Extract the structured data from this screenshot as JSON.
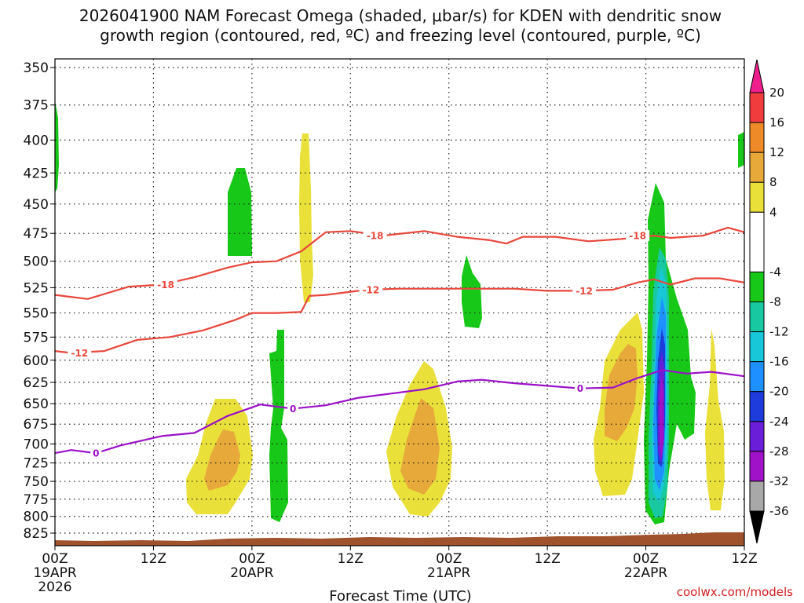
{
  "chart_data": {
    "type": "contour",
    "title": [
      "2026041900 NAM Forecast Omega (shaded, μbar/s) for KDEN with dendritic snow",
      "growth region (contoured, red, ºC) and freezing level (contoured, purple, ºC)"
    ],
    "xlabel": "Forecast Time (UTC)",
    "credit": "coolwx.com/models",
    "x_ticks": [
      {
        "hour": 0,
        "label": "00Z",
        "date": "19APR",
        "year": "2026"
      },
      {
        "hour": 12,
        "label": "12Z"
      },
      {
        "hour": 24,
        "label": "00Z",
        "date": "20APR"
      },
      {
        "hour": 36,
        "label": "12Z"
      },
      {
        "hour": 48,
        "label": "00Z",
        "date": "21APR"
      },
      {
        "hour": 60,
        "label": "12Z"
      },
      {
        "hour": 72,
        "label": "00Z",
        "date": "22APR"
      },
      {
        "hour": 84,
        "label": "12Z"
      }
    ],
    "xlim": [
      0,
      84
    ],
    "ylim": [
      350,
      835
    ],
    "y_ticks": [
      350,
      375,
      400,
      425,
      450,
      475,
      500,
      525,
      550,
      575,
      600,
      625,
      650,
      675,
      700,
      725,
      750,
      775,
      800,
      825
    ],
    "colorbar": {
      "ticks": [
        20,
        16,
        12,
        8,
        4,
        -4,
        -8,
        -12,
        -16,
        -20,
        -24,
        -28,
        -32,
        -36
      ],
      "bands": [
        {
          "range": [
            20,
            24
          ],
          "color": "#ee1f8c"
        },
        {
          "range": [
            16,
            20
          ],
          "color": "#f03c3c"
        },
        {
          "range": [
            12,
            16
          ],
          "color": "#ee8a28"
        },
        {
          "range": [
            8,
            12
          ],
          "color": "#e7a93a"
        },
        {
          "range": [
            4,
            8
          ],
          "color": "#e9e03a"
        },
        {
          "range": [
            -4,
            4
          ],
          "color": "#ffffff"
        },
        {
          "range": [
            -8,
            -4
          ],
          "color": "#18c818"
        },
        {
          "range": [
            -12,
            -8
          ],
          "color": "#18c8a0"
        },
        {
          "range": [
            -16,
            -12
          ],
          "color": "#18c8d8"
        },
        {
          "range": [
            -20,
            -16
          ],
          "color": "#1e90ff"
        },
        {
          "range": [
            -24,
            -20
          ],
          "color": "#1e3cdc"
        },
        {
          "range": [
            -28,
            -24
          ],
          "color": "#6a1ed8"
        },
        {
          "range": [
            -32,
            -28
          ],
          "color": "#a012c8"
        },
        {
          "range": [
            -36,
            -32
          ],
          "color": "#a8a8a8"
        },
        {
          "range": [
            -40,
            -36
          ],
          "color": "#000000"
        }
      ]
    },
    "contours": [
      {
        "name": "-18 ºC",
        "color": "#e8473c",
        "label": "-18",
        "points": [
          [
            0,
            532
          ],
          [
            4,
            536
          ],
          [
            9,
            524
          ],
          [
            13,
            522
          ],
          [
            17,
            515
          ],
          [
            21,
            506
          ],
          [
            24,
            501
          ],
          [
            27,
            500
          ],
          [
            30,
            491
          ],
          [
            33,
            474
          ],
          [
            36,
            473
          ],
          [
            40,
            477
          ],
          [
            45,
            473
          ],
          [
            49,
            478
          ],
          [
            53,
            481
          ],
          [
            55,
            484
          ],
          [
            57,
            478
          ],
          [
            61,
            478
          ],
          [
            65,
            482
          ],
          [
            69,
            480
          ],
          [
            73,
            477
          ],
          [
            75,
            479
          ],
          [
            79,
            477
          ],
          [
            82,
            470
          ],
          [
            84,
            474
          ]
        ],
        "label_positions": [
          [
            13.5,
            522
          ],
          [
            39,
            477
          ],
          [
            71,
            477
          ]
        ]
      },
      {
        "name": "-12 ºC",
        "color": "#e8473c",
        "label": "-12",
        "points": [
          [
            0,
            590
          ],
          [
            2,
            592
          ],
          [
            6,
            590
          ],
          [
            10,
            578
          ],
          [
            14,
            575
          ],
          [
            18,
            568
          ],
          [
            22,
            557
          ],
          [
            24,
            550
          ],
          [
            27,
            550
          ],
          [
            30,
            549
          ],
          [
            31,
            533
          ],
          [
            33,
            532
          ],
          [
            38,
            527
          ],
          [
            42,
            526
          ],
          [
            48,
            526
          ],
          [
            52,
            526
          ],
          [
            56,
            526
          ],
          [
            60,
            528
          ],
          [
            64,
            528
          ],
          [
            68,
            527
          ],
          [
            71,
            520
          ],
          [
            73,
            517
          ],
          [
            75,
            522
          ],
          [
            78,
            516
          ],
          [
            81,
            516
          ],
          [
            84,
            520
          ]
        ],
        "label_positions": [
          [
            3,
            592
          ],
          [
            38.5,
            527
          ],
          [
            64.5,
            528
          ]
        ]
      },
      {
        "name": "0 ºC freezing level",
        "color": "#9b10c8",
        "label": "0",
        "points": [
          [
            0,
            712
          ],
          [
            2,
            708
          ],
          [
            5,
            712
          ],
          [
            8,
            702
          ],
          [
            13,
            690
          ],
          [
            17,
            686
          ],
          [
            21,
            665
          ],
          [
            25,
            651
          ],
          [
            29,
            656
          ],
          [
            33,
            652
          ],
          [
            37,
            643
          ],
          [
            41,
            638
          ],
          [
            45,
            633
          ],
          [
            49,
            624
          ],
          [
            52,
            622
          ],
          [
            56,
            626
          ],
          [
            60,
            629
          ],
          [
            64,
            632
          ],
          [
            68,
            631
          ],
          [
            71,
            620
          ],
          [
            74,
            611
          ],
          [
            77,
            615
          ],
          [
            80,
            613
          ],
          [
            84,
            618
          ]
        ],
        "label_positions": [
          [
            5,
            712
          ],
          [
            29,
            656
          ],
          [
            64,
            632
          ]
        ]
      }
    ]
  }
}
